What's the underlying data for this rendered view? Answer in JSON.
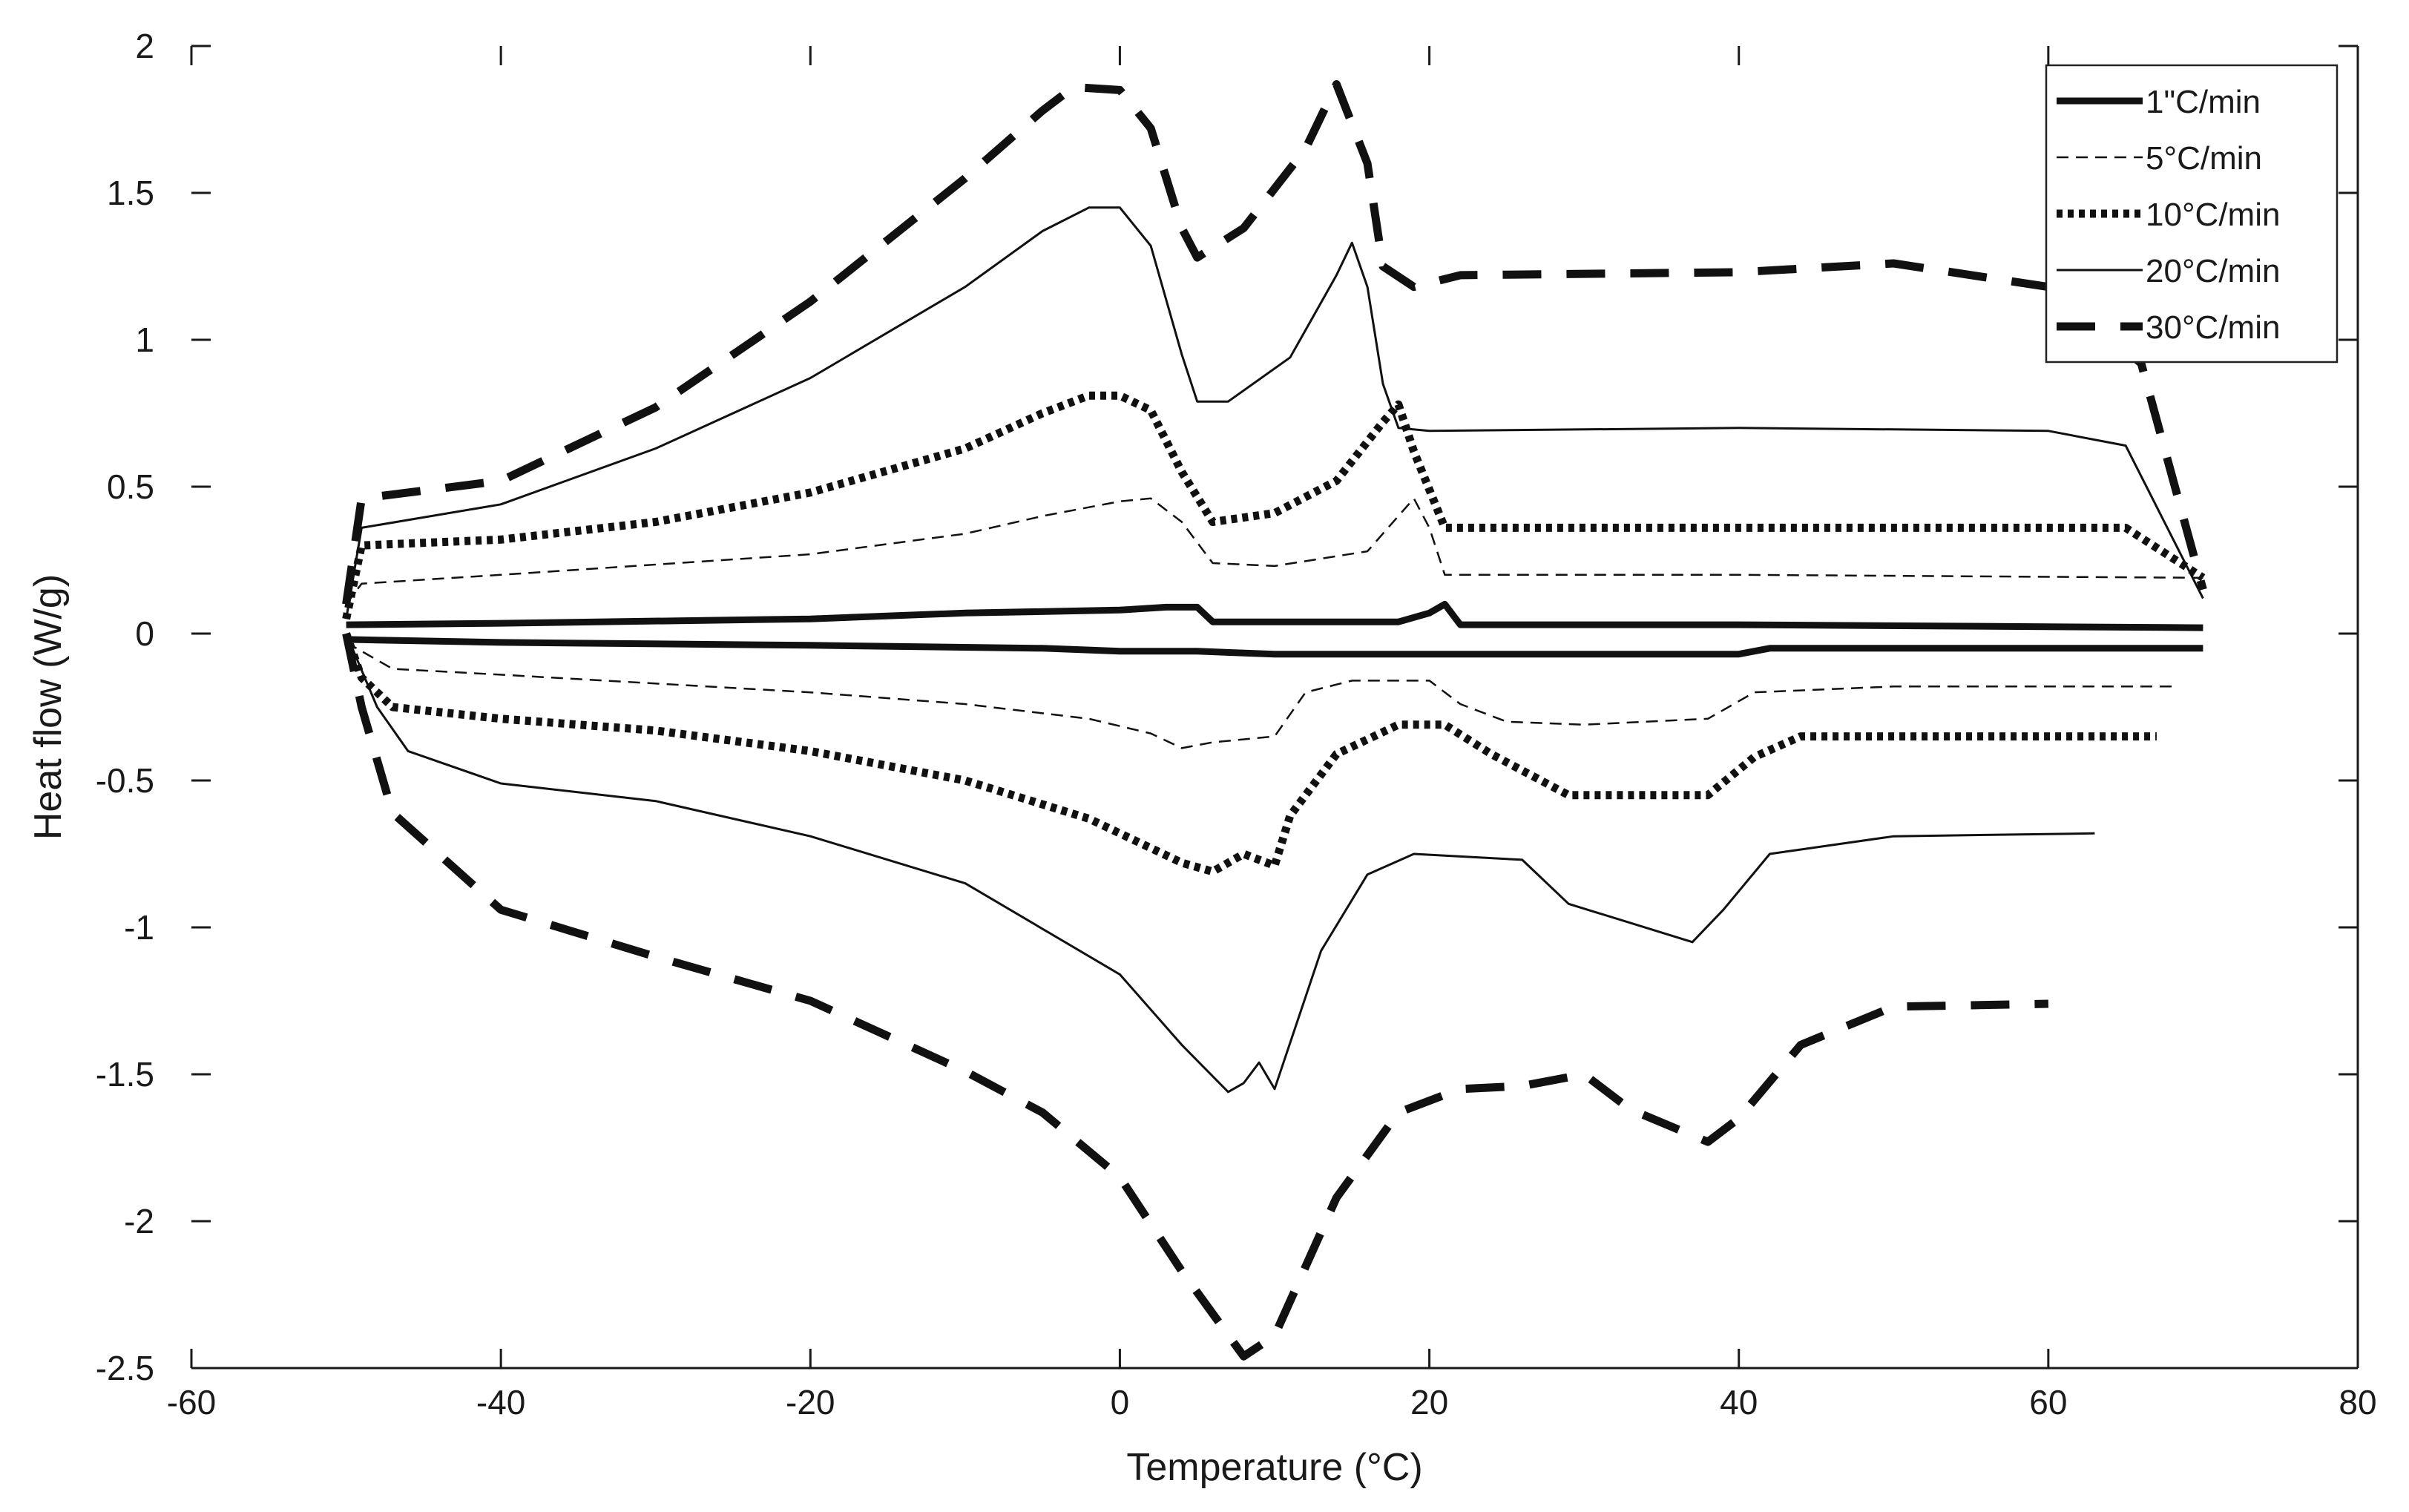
{
  "chart_data": {
    "type": "line",
    "xlabel": "Temperature (°C)",
    "ylabel": "Heat flow (W/g)",
    "xlim": [
      -60,
      80
    ],
    "ylim": [
      -2.5,
      2
    ],
    "x_ticks": [
      -60,
      -40,
      -20,
      0,
      20,
      40,
      60,
      80
    ],
    "x_tick_labels": [
      "-60",
      "-40",
      "-20",
      "0",
      "20",
      "40",
      "60",
      "80"
    ],
    "y_ticks": [
      -2.5,
      -2,
      -1.5,
      -1,
      -0.5,
      0,
      0.5,
      1,
      1.5,
      2
    ],
    "y_tick_labels": [
      "-2.5",
      "-2",
      "-1.5",
      "-1",
      "-0.5",
      "0",
      "0.5",
      "1",
      "1.5",
      "2"
    ],
    "grid": false,
    "legend_position": "top-right",
    "series": [
      {
        "name": "1\"C/min",
        "style": "solid-thick",
        "heating": [
          [
            -50,
            0.03
          ],
          [
            -40,
            0.035
          ],
          [
            -20,
            0.05
          ],
          [
            -10,
            0.07
          ],
          [
            0,
            0.08
          ],
          [
            3,
            0.09
          ],
          [
            5,
            0.09
          ],
          [
            6,
            0.04
          ],
          [
            10,
            0.04
          ],
          [
            18,
            0.04
          ],
          [
            20,
            0.07
          ],
          [
            21,
            0.1
          ],
          [
            22,
            0.03
          ],
          [
            40,
            0.03
          ],
          [
            70,
            0.02
          ]
        ],
        "cooling": [
          [
            -50,
            -0.02
          ],
          [
            -40,
            -0.03
          ],
          [
            -20,
            -0.04
          ],
          [
            -5,
            -0.05
          ],
          [
            0,
            -0.06
          ],
          [
            5,
            -0.06
          ],
          [
            10,
            -0.07
          ],
          [
            20,
            -0.07
          ],
          [
            40,
            -0.07
          ],
          [
            42,
            -0.05
          ],
          [
            60,
            -0.05
          ],
          [
            70,
            -0.05
          ]
        ]
      },
      {
        "name": "5°C/min",
        "style": "dashed-thin",
        "heating": [
          [
            -50,
            0.1
          ],
          [
            -49,
            0.17
          ],
          [
            -40,
            0.2
          ],
          [
            -20,
            0.27
          ],
          [
            -10,
            0.34
          ],
          [
            -5,
            0.4
          ],
          [
            0,
            0.45
          ],
          [
            2,
            0.46
          ],
          [
            4,
            0.38
          ],
          [
            6,
            0.24
          ],
          [
            10,
            0.23
          ],
          [
            16,
            0.28
          ],
          [
            19,
            0.46
          ],
          [
            20,
            0.36
          ],
          [
            21,
            0.2
          ],
          [
            40,
            0.2
          ],
          [
            70,
            0.19
          ]
        ],
        "cooling": [
          [
            -50,
            -0.03
          ],
          [
            -47,
            -0.12
          ],
          [
            -40,
            -0.14
          ],
          [
            -20,
            -0.2
          ],
          [
            -10,
            -0.24
          ],
          [
            -2,
            -0.29
          ],
          [
            2,
            -0.34
          ],
          [
            4,
            -0.39
          ],
          [
            6,
            -0.37
          ],
          [
            10,
            -0.35
          ],
          [
            12,
            -0.2
          ],
          [
            15,
            -0.16
          ],
          [
            20,
            -0.16
          ],
          [
            22,
            -0.24
          ],
          [
            25,
            -0.3
          ],
          [
            30,
            -0.31
          ],
          [
            38,
            -0.29
          ],
          [
            41,
            -0.2
          ],
          [
            50,
            -0.18
          ],
          [
            68,
            -0.18
          ]
        ]
      },
      {
        "name": "10°C/min",
        "style": "dotted-thick",
        "heating": [
          [
            -50,
            0.05
          ],
          [
            -49,
            0.3
          ],
          [
            -40,
            0.32
          ],
          [
            -30,
            0.38
          ],
          [
            -20,
            0.48
          ],
          [
            -10,
            0.63
          ],
          [
            -5,
            0.75
          ],
          [
            -2,
            0.81
          ],
          [
            0,
            0.81
          ],
          [
            2,
            0.76
          ],
          [
            4,
            0.55
          ],
          [
            6,
            0.38
          ],
          [
            10,
            0.41
          ],
          [
            14,
            0.52
          ],
          [
            17,
            0.72
          ],
          [
            18,
            0.78
          ],
          [
            19,
            0.62
          ],
          [
            21,
            0.36
          ],
          [
            40,
            0.36
          ],
          [
            65,
            0.36
          ],
          [
            70,
            0.19
          ]
        ],
        "cooling": [
          [
            -50,
            0.0
          ],
          [
            -49,
            -0.15
          ],
          [
            -47,
            -0.25
          ],
          [
            -40,
            -0.29
          ],
          [
            -30,
            -0.33
          ],
          [
            -20,
            -0.4
          ],
          [
            -10,
            -0.5
          ],
          [
            -2,
            -0.63
          ],
          [
            4,
            -0.78
          ],
          [
            6,
            -0.81
          ],
          [
            8,
            -0.75
          ],
          [
            10,
            -0.79
          ],
          [
            11,
            -0.62
          ],
          [
            14,
            -0.41
          ],
          [
            18,
            -0.31
          ],
          [
            21,
            -0.31
          ],
          [
            24,
            -0.41
          ],
          [
            29,
            -0.55
          ],
          [
            38,
            -0.55
          ],
          [
            41,
            -0.42
          ],
          [
            44,
            -0.35
          ],
          [
            67,
            -0.35
          ]
        ]
      },
      {
        "name": "20°C/min",
        "style": "solid-thin",
        "heating": [
          [
            -50,
            0.05
          ],
          [
            -49,
            0.36
          ],
          [
            -40,
            0.44
          ],
          [
            -30,
            0.63
          ],
          [
            -20,
            0.87
          ],
          [
            -10,
            1.18
          ],
          [
            -5,
            1.37
          ],
          [
            -2,
            1.45
          ],
          [
            0,
            1.45
          ],
          [
            2,
            1.32
          ],
          [
            4,
            0.95
          ],
          [
            5,
            0.79
          ],
          [
            7,
            0.79
          ],
          [
            11,
            0.94
          ],
          [
            14,
            1.22
          ],
          [
            15,
            1.33
          ],
          [
            16,
            1.18
          ],
          [
            17,
            0.85
          ],
          [
            18,
            0.7
          ],
          [
            20,
            0.69
          ],
          [
            40,
            0.7
          ],
          [
            60,
            0.69
          ],
          [
            65,
            0.64
          ],
          [
            70,
            0.12
          ]
        ],
        "cooling": [
          [
            -50,
            0.0
          ],
          [
            -48,
            -0.25
          ],
          [
            -46,
            -0.4
          ],
          [
            -40,
            -0.51
          ],
          [
            -30,
            -0.57
          ],
          [
            -20,
            -0.69
          ],
          [
            -10,
            -0.85
          ],
          [
            0,
            -1.16
          ],
          [
            4,
            -1.4
          ],
          [
            7,
            -1.56
          ],
          [
            8,
            -1.53
          ],
          [
            9,
            -1.46
          ],
          [
            10,
            -1.55
          ],
          [
            13,
            -1.08
          ],
          [
            16,
            -0.82
          ],
          [
            19,
            -0.75
          ],
          [
            26,
            -0.77
          ],
          [
            29,
            -0.92
          ],
          [
            37,
            -1.05
          ],
          [
            39,
            -0.94
          ],
          [
            42,
            -0.75
          ],
          [
            50,
            -0.69
          ],
          [
            63,
            -0.68
          ]
        ]
      },
      {
        "name": "30°C/min",
        "style": "dashed-thick",
        "heating": [
          [
            -50,
            0.1
          ],
          [
            -49,
            0.46
          ],
          [
            -40,
            0.52
          ],
          [
            -30,
            0.77
          ],
          [
            -20,
            1.13
          ],
          [
            -10,
            1.55
          ],
          [
            -5,
            1.78
          ],
          [
            -3,
            1.86
          ],
          [
            0,
            1.85
          ],
          [
            2,
            1.72
          ],
          [
            4,
            1.38
          ],
          [
            5,
            1.28
          ],
          [
            8,
            1.38
          ],
          [
            12,
            1.65
          ],
          [
            14,
            1.87
          ],
          [
            16,
            1.6
          ],
          [
            17,
            1.25
          ],
          [
            19,
            1.18
          ],
          [
            22,
            1.22
          ],
          [
            40,
            1.23
          ],
          [
            50,
            1.26
          ],
          [
            60,
            1.18
          ],
          [
            66,
            0.92
          ],
          [
            70,
            0.15
          ]
        ],
        "cooling": [
          [
            -50,
            0.0
          ],
          [
            -49,
            -0.25
          ],
          [
            -47,
            -0.61
          ],
          [
            -40,
            -0.94
          ],
          [
            -30,
            -1.1
          ],
          [
            -20,
            -1.25
          ],
          [
            -10,
            -1.49
          ],
          [
            -5,
            -1.63
          ],
          [
            0,
            -1.85
          ],
          [
            4,
            -2.17
          ],
          [
            8,
            -2.46
          ],
          [
            10,
            -2.39
          ],
          [
            14,
            -1.92
          ],
          [
            18,
            -1.63
          ],
          [
            22,
            -1.55
          ],
          [
            26,
            -1.54
          ],
          [
            30,
            -1.5
          ],
          [
            33,
            -1.62
          ],
          [
            38,
            -1.73
          ],
          [
            40,
            -1.65
          ],
          [
            44,
            -1.4
          ],
          [
            50,
            -1.27
          ],
          [
            60,
            -1.26
          ]
        ]
      }
    ]
  }
}
